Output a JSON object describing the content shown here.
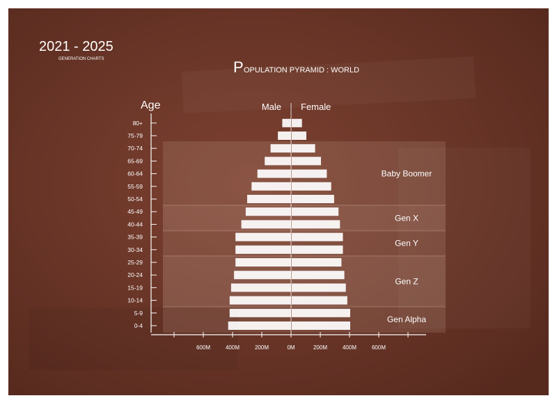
{
  "header": {
    "years": "2021 - 2025",
    "subtitle": "GENERATION CHARTS",
    "title_initial": "P",
    "title_rest": "OPULATION PYRAMID : WORLD"
  },
  "colors": {
    "board": "#6b3628",
    "bar": "#ffffff",
    "text": "#ffffff",
    "band": "#d8b8a8"
  },
  "chart_data": {
    "type": "bar",
    "orientation": "horizontal-pyramid",
    "ylabel": "Age",
    "categories": [
      "0-4",
      "5-9",
      "10-14",
      "15-19",
      "20-24",
      "25-29",
      "30-34",
      "35-39",
      "40-44",
      "45-49",
      "50-54",
      "55-59",
      "60-64",
      "65-69",
      "70-74",
      "75-79",
      "80+"
    ],
    "series": [
      {
        "name": "Male",
        "values": [
          430,
          420,
          420,
          410,
          390,
          380,
          380,
          380,
          340,
          310,
          300,
          270,
          230,
          180,
          140,
          90,
          60
        ]
      },
      {
        "name": "Female",
        "values": [
          400,
          400,
          380,
          370,
          360,
          340,
          350,
          350,
          330,
          320,
          290,
          270,
          240,
          200,
          160,
          100,
          70
        ]
      }
    ],
    "xlim": [
      -800,
      800
    ],
    "x_tick_labels": [
      {
        "value": -600,
        "label": "600M"
      },
      {
        "value": -400,
        "label": "400M"
      },
      {
        "value": -200,
        "label": "200M"
      },
      {
        "value": 0,
        "label": "0M"
      },
      {
        "value": 200,
        "label": "200M"
      },
      {
        "value": 400,
        "label": "400M"
      },
      {
        "value": 600,
        "label": "600M"
      }
    ],
    "generations": [
      {
        "name": "Baby Boomer",
        "from": "50-54",
        "to": "70-74"
      },
      {
        "name": "Gen X",
        "from": "40-44",
        "to": "45-49"
      },
      {
        "name": "Gen Y",
        "from": "30-34",
        "to": "35-39"
      },
      {
        "name": "Gen Z",
        "from": "10-14",
        "to": "25-29"
      },
      {
        "name": "Gen Alpha",
        "from": "0-4",
        "to": "5-9"
      }
    ],
    "grid": false
  }
}
